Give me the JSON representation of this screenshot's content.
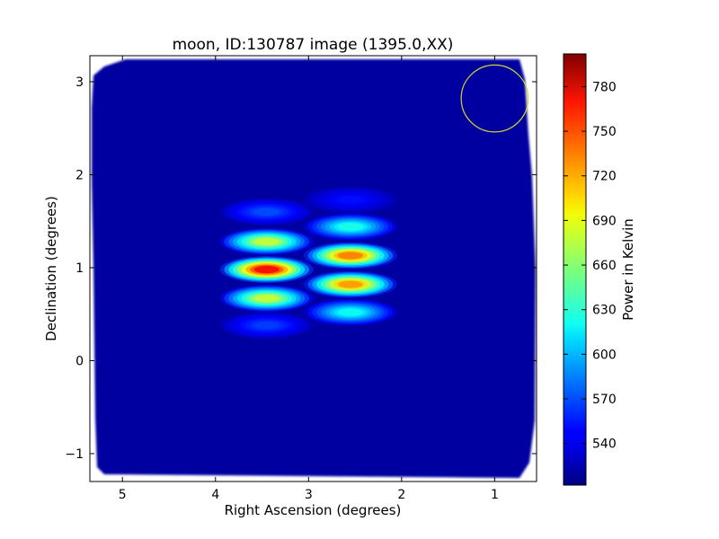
{
  "chart_data": {
    "type": "heatmap",
    "title": "moon, ID:130787 image (1395.0,XX)",
    "xlabel": "Right Ascension (degrees)",
    "ylabel": "Declination (degrees)",
    "colorbar_label": "Power in Kelvin",
    "xlim": [
      5.35,
      0.55
    ],
    "ylim": [
      -1.3,
      3.28
    ],
    "x_inverted": true,
    "xticks": [
      5,
      4,
      3,
      2,
      1
    ],
    "xtick_labels": [
      "5",
      "4",
      "3",
      "2",
      "1"
    ],
    "yticks": [
      3,
      2,
      1,
      0,
      -1
    ],
    "ytick_labels": [
      "3",
      "2",
      "1",
      "0",
      "−1"
    ],
    "colorbar_range": [
      512,
      802
    ],
    "colorbar_ticks": [
      780,
      750,
      720,
      690,
      660,
      630,
      600,
      570,
      540
    ],
    "colorbar_tick_labels": [
      "780",
      "750",
      "720",
      "690",
      "660",
      "630",
      "600",
      "570",
      "540"
    ],
    "colormap": "jet",
    "background_level": 525,
    "grid": false,
    "sources": [
      {
        "ra": 3.45,
        "dec": 1.6,
        "peak": 575
      },
      {
        "ra": 3.45,
        "dec": 1.28,
        "peak": 695
      },
      {
        "ra": 3.45,
        "dec": 0.98,
        "peak": 795
      },
      {
        "ra": 3.45,
        "dec": 0.67,
        "peak": 695
      },
      {
        "ra": 3.45,
        "dec": 0.38,
        "peak": 570
      },
      {
        "ra": 2.55,
        "dec": 1.73,
        "peak": 555
      },
      {
        "ra": 2.55,
        "dec": 1.44,
        "peak": 640
      },
      {
        "ra": 2.55,
        "dec": 1.13,
        "peak": 755
      },
      {
        "ra": 2.55,
        "dec": 0.82,
        "peak": 745
      },
      {
        "ra": 2.55,
        "dec": 0.52,
        "peak": 635
      }
    ],
    "beam_circle": {
      "ra": 1.0,
      "dec": 2.82,
      "radius_deg": 0.36,
      "color": "#d6d630"
    },
    "colors": {
      "background": "#0000a0",
      "frame": "#000000"
    }
  }
}
